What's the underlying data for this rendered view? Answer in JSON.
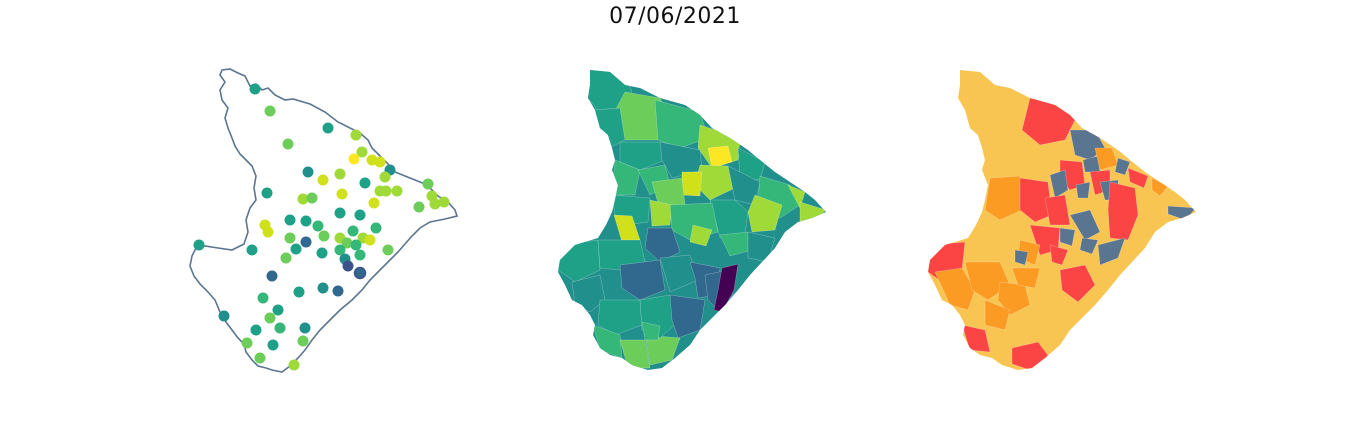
{
  "figure": {
    "title": "07/06/2021"
  },
  "colors": {
    "outline": "#5a7590",
    "viridis": [
      "#440154",
      "#3b528b",
      "#31688e",
      "#21908c",
      "#1fa187",
      "#35b779",
      "#6ccd5a",
      "#a0da39",
      "#d0e11c",
      "#fde725"
    ],
    "categories": [
      "#f9c552",
      "#fb9b24",
      "#fb4545",
      "#5a7590"
    ]
  },
  "panels": [
    {
      "id": "station-points",
      "kind": "point-map"
    },
    {
      "id": "municipal-choropleth",
      "kind": "continuous-choropleth"
    },
    {
      "id": "category-choropleth",
      "kind": "categorical-choropleth"
    }
  ]
}
